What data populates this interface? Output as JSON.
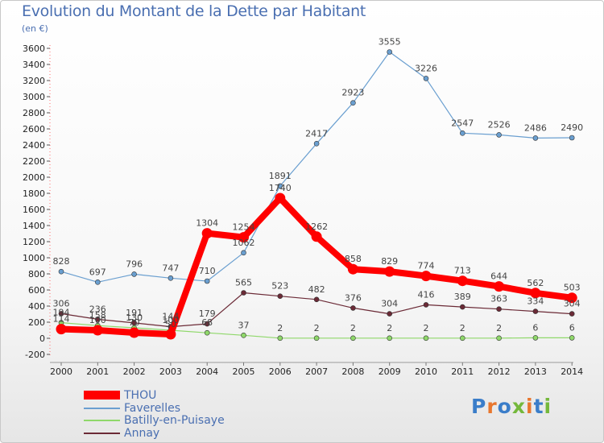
{
  "title": "Evolution du Montant de la Dette par Habitant",
  "subtitle": "(en €)",
  "logo_text": "Proxiti",
  "colors": {
    "title": "#4a6fb1",
    "grid": "#cccccc",
    "THOU": "#ff0000",
    "Faverelles": "#6a9fd0",
    "Batilly": "#8fd86a",
    "Annay": "#6b2a36"
  },
  "chart_data": {
    "type": "line",
    "title": "Evolution du Montant de la Dette par Habitant",
    "subtitle": "(en €)",
    "x": [
      "2000",
      "2001",
      "2002",
      "2003",
      "2004",
      "2005",
      "2006",
      "2007",
      "2008",
      "2009",
      "2010",
      "2011",
      "2012",
      "2013",
      "2014"
    ],
    "y_ticks": [
      -200,
      0,
      200,
      400,
      600,
      800,
      1000,
      1200,
      1400,
      1600,
      1800,
      2000,
      2200,
      2400,
      2600,
      2800,
      3000,
      3200,
      3400,
      3600
    ],
    "ylim": [
      -200,
      3600
    ],
    "grid": false,
    "legend_position": "bottom-left",
    "series": [
      {
        "name": "THOU",
        "color": "#ff0000",
        "width": 8,
        "labels": true,
        "values": [
          114,
          100,
          70,
          50,
          1304,
          1254,
          1740,
          1262,
          858,
          829,
          774,
          713,
          644,
          562,
          503
        ]
      },
      {
        "name": "Faverelles",
        "color": "#6a9fd0",
        "width": 1.2,
        "labels": true,
        "values": [
          828,
          697,
          796,
          747,
          710,
          1062,
          1891,
          2417,
          2923,
          3555,
          3226,
          2547,
          2526,
          2486,
          2490
        ]
      },
      {
        "name": "Batilly-en-Puisaye",
        "color": "#8fd86a",
        "width": 1.2,
        "labels": true,
        "values": [
          194,
          158,
          130,
          100,
          68,
          37,
          2,
          2,
          2,
          2,
          2,
          2,
          2,
          6,
          6
        ]
      },
      {
        "name": "Annay",
        "color": "#6b2a36",
        "width": 1.2,
        "labels": true,
        "values": [
          306,
          236,
          191,
          144,
          179,
          565,
          523,
          482,
          376,
          304,
          416,
          389,
          363,
          334,
          304
        ]
      }
    ]
  }
}
